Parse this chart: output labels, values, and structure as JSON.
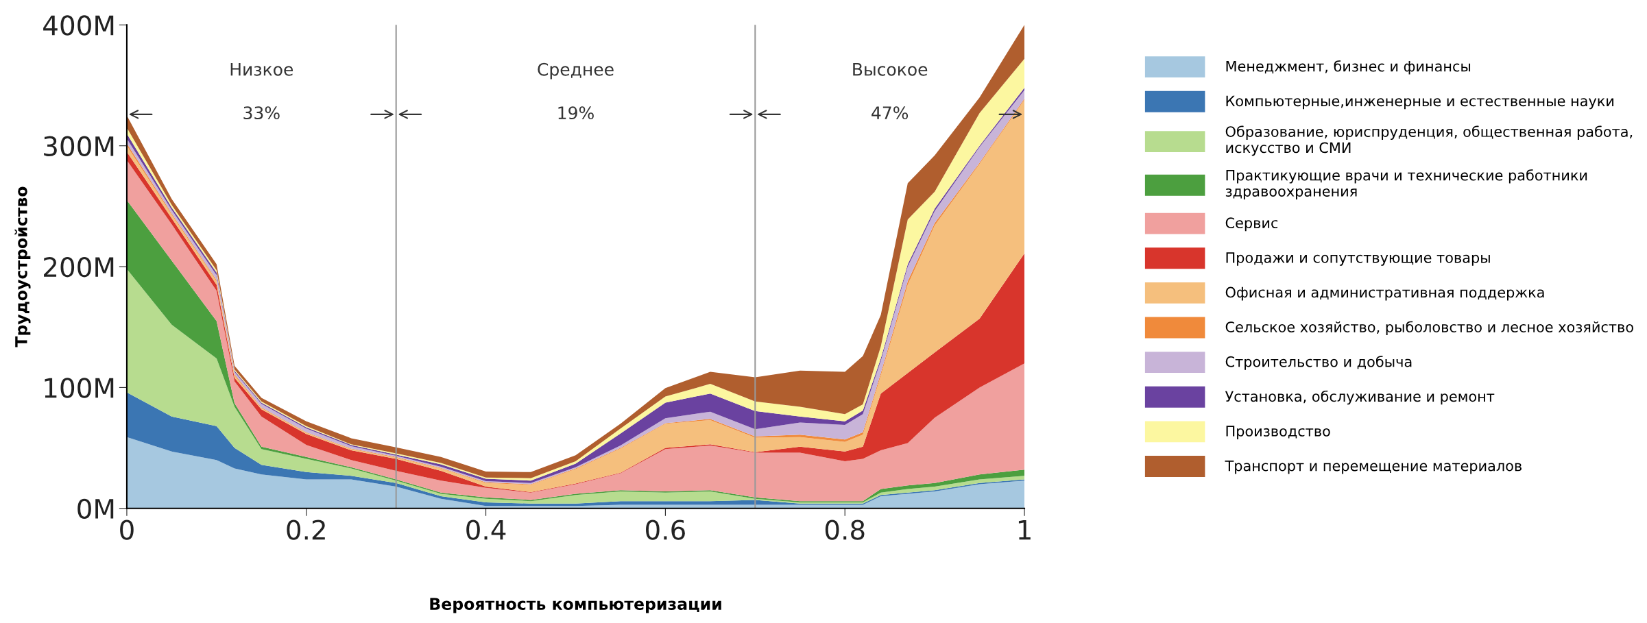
{
  "chart_data": {
    "type": "area",
    "stacked": true,
    "xlabel": "Вероятность компьютеризации",
    "ylabel": "Трудоустройство",
    "x": [
      0,
      0.05,
      0.1,
      0.12,
      0.15,
      0.2,
      0.25,
      0.3,
      0.35,
      0.4,
      0.45,
      0.5,
      0.55,
      0.6,
      0.65,
      0.7,
      0.75,
      0.8,
      0.82,
      0.84,
      0.87,
      0.9,
      0.95,
      1
    ],
    "xlim": [
      0,
      1
    ],
    "xticks": [
      0,
      0.2,
      0.4,
      0.6,
      0.8,
      1
    ],
    "ylim": [
      0,
      400
    ],
    "yticks": [
      {
        "value": 0,
        "label": "0M"
      },
      {
        "value": 100,
        "label": "100M"
      },
      {
        "value": 200,
        "label": "200M"
      },
      {
        "value": 300,
        "label": "300M"
      },
      {
        "value": 400,
        "label": "400M"
      }
    ],
    "grid": false,
    "legend": "right",
    "ref_lines": [
      {
        "axis": "x",
        "value": 0.3,
        "color": "#999999"
      },
      {
        "axis": "x",
        "value": 0.7,
        "color": "#999999"
      }
    ],
    "annotations": [
      "Низкое",
      "33%",
      "Среднее",
      "19%",
      "Высокое",
      "47%"
    ],
    "series": [
      {
        "name": "Менеджмент, бизнес и финансы",
        "color": "#a6c8e0",
        "values": [
          59,
          47,
          40,
          33,
          28,
          24,
          24,
          18,
          8,
          2,
          2,
          2,
          3,
          3,
          3,
          3,
          3,
          3,
          3,
          10,
          12,
          14,
          20,
          23
        ]
      },
      {
        "name": "Компьютерные,инженерные и естественные науки",
        "color": "#3b76b3",
        "values": [
          37,
          29,
          28,
          17,
          8,
          6,
          3,
          3,
          2,
          3,
          2,
          2,
          3,
          3,
          3,
          4,
          1,
          1,
          1,
          1,
          1,
          1,
          1,
          1
        ]
      },
      {
        "name": "Образование, юриспруденция, общественная работа,\nискусство и СМИ",
        "color": "#b7dc8f",
        "values": [
          102,
          76,
          56,
          34,
          13,
          11,
          6,
          2,
          2,
          3,
          2,
          7,
          8,
          7,
          8,
          1,
          1,
          1,
          1,
          2,
          3,
          3,
          3,
          3
        ]
      },
      {
        "name": "Практикующие врачи и технические работники\nздравоохранения",
        "color": "#4c9f3f",
        "values": [
          57,
          53,
          31,
          3,
          2,
          1.5,
          1,
          1,
          1,
          1,
          1,
          1,
          1,
          1,
          1,
          1,
          1,
          1,
          1,
          3,
          3,
          3,
          4,
          5
        ]
      },
      {
        "name": "Сервис",
        "color": "#f0a09e",
        "values": [
          33,
          30,
          25,
          18,
          25,
          10,
          6,
          7,
          10,
          8,
          6,
          8,
          14,
          35,
          37,
          37,
          40,
          33,
          35,
          32,
          35,
          54,
          72,
          88
        ]
      },
      {
        "name": "Продажи и сопутствующие товары",
        "color": "#d8352c",
        "values": [
          7,
          5,
          5,
          3,
          6,
          9,
          8,
          10,
          8,
          1,
          0.5,
          0.5,
          0.5,
          1,
          1,
          0.5,
          5,
          8,
          10,
          47,
          58,
          54,
          57,
          91
        ]
      },
      {
        "name": "Офисная и административная поддержка",
        "color": "#f5bf7d",
        "values": [
          5,
          3,
          3,
          2,
          1,
          1,
          1,
          1,
          2,
          3,
          6,
          12,
          20,
          20,
          20,
          12,
          8,
          8,
          10,
          15,
          73,
          105,
          128,
          127
        ]
      },
      {
        "name": "Сельское хозяйство, рыболовство и лесное хозяйство",
        "color": "#f08a3b",
        "values": [
          2,
          1,
          1,
          1,
          0.5,
          0.5,
          0.5,
          0.5,
          0.5,
          0.5,
          0.5,
          0.5,
          0.5,
          0.5,
          1,
          1,
          2,
          2,
          2,
          2,
          3,
          2,
          1,
          1
        ]
      },
      {
        "name": "Строительство и добыча",
        "color": "#c8b4d8",
        "values": [
          4,
          3,
          4,
          2,
          3,
          3,
          2,
          1,
          1,
          1,
          1,
          1,
          2,
          4,
          6,
          6,
          10,
          12,
          15,
          10,
          12,
          10,
          13,
          7
        ]
      },
      {
        "name": "Установка, обслуживание и ремонт",
        "color": "#6a42a0",
        "values": [
          4,
          2,
          2,
          1,
          1,
          1,
          1,
          1,
          2,
          2,
          2,
          3,
          10,
          13,
          15,
          15,
          5,
          3,
          3,
          2,
          2,
          2,
          1,
          2
        ]
      },
      {
        "name": "Производство",
        "color": "#fcf7a0",
        "values": [
          5,
          2,
          2,
          1,
          1,
          1,
          0.5,
          1,
          1,
          1,
          2,
          2,
          4,
          5,
          8,
          8,
          8,
          6,
          5,
          10,
          37,
          14,
          27,
          24
        ]
      },
      {
        "name": "Транспорт и перемещение материалов",
        "color": "#b05e2e",
        "values": [
          10,
          5,
          5,
          3,
          3,
          4,
          5,
          5,
          5,
          5,
          5,
          5,
          4,
          7,
          10,
          20,
          30,
          35,
          40,
          26,
          30,
          30,
          13,
          28
        ]
      }
    ]
  }
}
